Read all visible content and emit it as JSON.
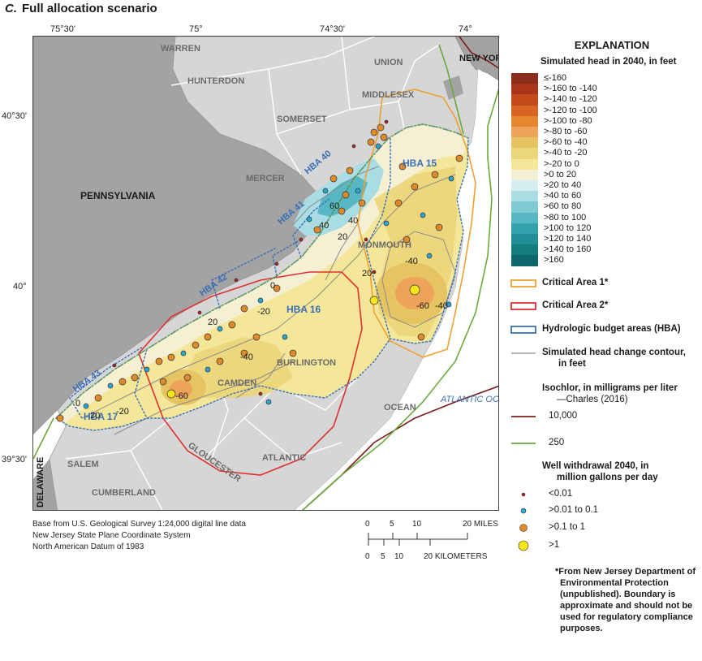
{
  "panel": {
    "letter": "C.",
    "title": "Full allocation scenario"
  },
  "axes": {
    "top": [
      "75°30'",
      "75°",
      "74°30'",
      "74°"
    ],
    "left": [
      "40°30'",
      "40°",
      "39°30'"
    ]
  },
  "counties": [
    "WARREN",
    "HUNTERDON",
    "SOMERSET",
    "MERCER",
    "UNION",
    "MIDDLESEX",
    "MONMOUTH",
    "BURLINGTON",
    "CAMDEN",
    "GLOUCESTER",
    "OCEAN",
    "SALEM",
    "ATLANTIC",
    "CUMBERLAND"
  ],
  "states": [
    "PENNSYLVANIA",
    "NEW YORK",
    "DELAWARE"
  ],
  "water": [
    "ATLANTIC OCEAN"
  ],
  "hba_labels": [
    "HBA 40",
    "HBA 41",
    "HBA 42",
    "HBA 43",
    "HBA 15",
    "HBA 16",
    "HBA 17"
  ],
  "contour_labels": [
    "40",
    "60",
    "40",
    "20",
    "20",
    "0",
    "-20",
    "-40",
    "-60",
    "-40",
    "-20",
    "20",
    "-60",
    "0",
    "20",
    "-40"
  ],
  "credits": [
    "Base from U.S. Geological Survey 1:24,000 digital line data",
    "New Jersey State Plane Coordinate System",
    "North American Datum of 1983"
  ],
  "scale": {
    "miles_ticks": [
      "0",
      "5",
      "10",
      "20 MILES"
    ],
    "km_ticks": [
      "0",
      "5",
      "10",
      "20 KILOMETERS"
    ]
  },
  "legend": {
    "title": "EXPLANATION",
    "head_title": "Simulated head in 2040, in feet",
    "head_bins": [
      {
        "label": "≤-160",
        "color": "#8c2d1c"
      },
      {
        "label": ">-160 to -140",
        "color": "#a9351a"
      },
      {
        "label": ">-140 to -120",
        "color": "#c44a1c"
      },
      {
        "label": ">-120 to -100",
        "color": "#d96524"
      },
      {
        "label": ">-100 to -80",
        "color": "#e5872e"
      },
      {
        "label": ">-80 to -60",
        "color": "#eea35b"
      },
      {
        "label": ">-60 to -40",
        "color": "#e6c462"
      },
      {
        "label": ">-40 to -20",
        "color": "#ecd57a"
      },
      {
        "label": ">-20 to 0",
        "color": "#f4e79a"
      },
      {
        "label": ">0 to 20",
        "color": "#f5efd4"
      },
      {
        "label": ">20 to 40",
        "color": "#d5eef0"
      },
      {
        "label": ">40 to 60",
        "color": "#aadde3"
      },
      {
        "label": ">60 to 80",
        "color": "#7fcad3"
      },
      {
        "label": ">80 to 100",
        "color": "#57b7c2"
      },
      {
        "label": ">100 to 120",
        "color": "#34a2ad"
      },
      {
        "label": ">120 to 140",
        "color": "#228f96"
      },
      {
        "label": ">140 to 160",
        "color": "#157c80"
      },
      {
        "label": ">160",
        "color": "#0d686b"
      }
    ],
    "critical_area_1": {
      "label": "Critical Area 1*",
      "color": "#f0a030"
    },
    "critical_area_2": {
      "label": "Critical Area 2*",
      "color": "#e03030"
    },
    "hba": {
      "label": "Hydrologic budget areas (HBA)",
      "color": "#3a6fb5"
    },
    "contour": {
      "label_1": "Simulated head change contour,",
      "label_2": "in feet",
      "color": "#8c8c8c"
    },
    "isochlor": {
      "title_1": "Isochlor, in milligrams per liter",
      "title_2": "—Charles (2016)",
      "items": [
        {
          "label": "10,000",
          "color": "#7a1b1b"
        },
        {
          "label": "250",
          "color": "#6aaa3a"
        }
      ]
    },
    "wells": {
      "title_1": "Well withdrawal 2040, in",
      "title_2": "million gallons per day",
      "items": [
        {
          "label": "<0.01",
          "color": "#b22222"
        },
        {
          "label": ">0.01 to 0.1",
          "color": "#2aa6d6"
        },
        {
          "label": ">0.1 to 1",
          "color": "#e08a2c"
        },
        {
          "label": ">1",
          "color": "#f5e61a"
        }
      ]
    },
    "footnote": [
      "*From New Jersey Department of",
      "Environmental Protection",
      "(unpublished). Boundary is",
      "approximate and should not be",
      "used for regulatory compliance",
      "purposes."
    ]
  }
}
